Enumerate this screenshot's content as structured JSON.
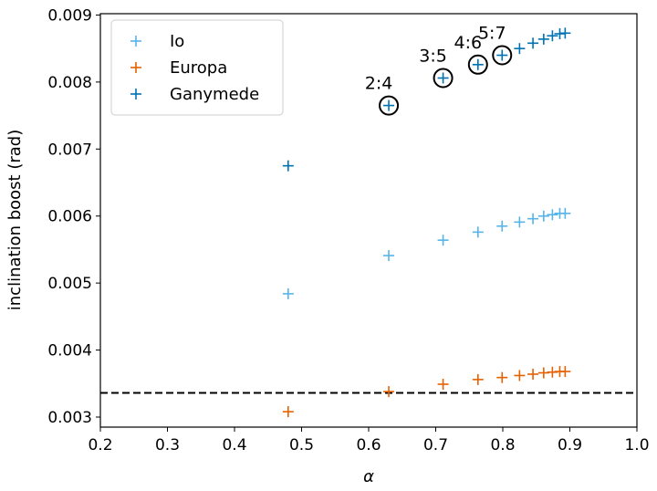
{
  "chart_data": {
    "type": "scatter",
    "title": "",
    "xlabel": "α",
    "ylabel": "inclination boost (rad)",
    "xlim": [
      0.2,
      1.0
    ],
    "ylim": [
      0.00285,
      0.00902
    ],
    "grid": false,
    "legend": "top-left",
    "xticks": [
      0.2,
      0.3,
      0.4,
      0.5,
      0.6,
      0.7,
      0.8,
      0.9,
      1.0
    ],
    "xtick_labels": [
      "0.2",
      "0.3",
      "0.4",
      "0.5",
      "0.6",
      "0.7",
      "0.8",
      "0.9",
      "1.0"
    ],
    "yticks": [
      0.003,
      0.004,
      0.005,
      0.006,
      0.007,
      0.008,
      0.009
    ],
    "ytick_labels": [
      "0.003",
      "0.004",
      "0.005",
      "0.006",
      "0.007",
      "0.008",
      "0.009"
    ],
    "x": [
      0.48,
      0.63,
      0.711,
      0.763,
      0.799,
      0.825,
      0.845,
      0.861,
      0.874,
      0.885,
      0.893
    ],
    "series": [
      {
        "name": "Io",
        "color": "#56b4e9",
        "marker": "+",
        "values": [
          0.00484,
          0.00541,
          0.00564,
          0.00576,
          0.00585,
          0.00591,
          0.00596,
          0.006,
          0.00602,
          0.00604,
          0.00604
        ]
      },
      {
        "name": "Europa",
        "color": "#e66100",
        "marker": "+",
        "values": [
          0.00308,
          0.00338,
          0.00349,
          0.00356,
          0.00359,
          0.00362,
          0.00364,
          0.00366,
          0.00367,
          0.00368,
          0.00368
        ]
      },
      {
        "name": "Ganymede",
        "color": "#0072b2",
        "marker": "+",
        "values": [
          0.00675,
          0.00765,
          0.00806,
          0.00826,
          0.0084,
          0.0085,
          0.00858,
          0.00864,
          0.00869,
          0.00872,
          0.00873
        ]
      }
    ],
    "reference_line": {
      "y": 0.00336,
      "style": "dashed",
      "color": "#000000"
    },
    "annotations": [
      {
        "text": "2:4",
        "x": 0.63,
        "y": 0.00765
      },
      {
        "text": "3:5",
        "x": 0.711,
        "y": 0.00806
      },
      {
        "text": "4:6",
        "x": 0.763,
        "y": 0.00826
      },
      {
        "text": "5:7",
        "x": 0.799,
        "y": 0.0084
      }
    ]
  }
}
